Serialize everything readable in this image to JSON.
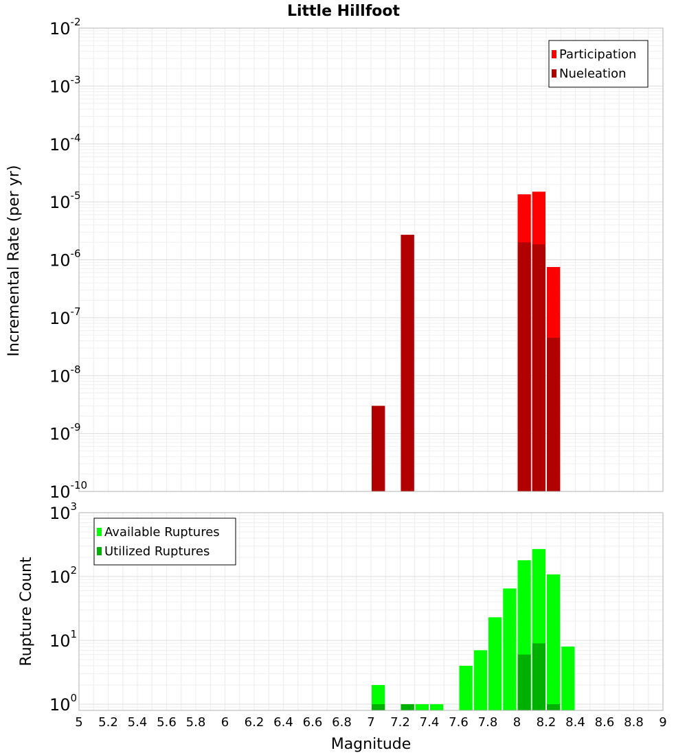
{
  "chart_data": [
    {
      "type": "bar",
      "title": "Little Hillfoot",
      "xlabel": "",
      "ylabel": "Incremental Rate (per yr)",
      "xlim": [
        5,
        9
      ],
      "ylim": [
        1e-10,
        0.01
      ],
      "yscale": "log",
      "y_tick_base": "10",
      "y_tick_exponents": [
        "-10",
        "-9",
        "-8",
        "-7",
        "-6",
        "-5",
        "-4",
        "-3",
        "-2"
      ],
      "grid": true,
      "legend": {
        "placement": "top-right",
        "entries": [
          "Participation",
          "Nueleation"
        ]
      },
      "series": [
        {
          "name": "Participation",
          "color": "#ff0000",
          "points": [
            {
              "x": 7.05,
              "y": 3e-09
            },
            {
              "x": 7.25,
              "y": 2.7e-06
            },
            {
              "x": 8.05,
              "y": 1.35e-05
            },
            {
              "x": 8.15,
              "y": 1.5e-05
            },
            {
              "x": 8.25,
              "y": 7.5e-07
            }
          ]
        },
        {
          "name": "Nueleation",
          "color": "#b00000",
          "points": [
            {
              "x": 7.05,
              "y": 3e-09
            },
            {
              "x": 7.25,
              "y": 2.7e-06
            },
            {
              "x": 8.05,
              "y": 2e-06
            },
            {
              "x": 8.15,
              "y": 1.85e-06
            },
            {
              "x": 8.25,
              "y": 4.5e-08
            }
          ]
        }
      ]
    },
    {
      "type": "bar",
      "title": "",
      "xlabel": "Magnitude",
      "ylabel": "Rupture Count",
      "xlim": [
        5,
        9
      ],
      "ylim": [
        0.8,
        1000
      ],
      "yscale": "log",
      "y_tick_base": "10",
      "y_tick_exponents": [
        "0",
        "1",
        "2",
        "3"
      ],
      "x_ticks": [
        "5",
        "5.2",
        "5.4",
        "5.6",
        "5.8",
        "6",
        "6.2",
        "6.4",
        "6.6",
        "6.8",
        "7",
        "7.2",
        "7.4",
        "7.6",
        "7.8",
        "8",
        "8.2",
        "8.4",
        "8.6",
        "8.8",
        "9"
      ],
      "grid": true,
      "legend": {
        "placement": "top-left",
        "entries": [
          "Available Ruptures",
          "Utilized Ruptures"
        ]
      },
      "series": [
        {
          "name": "Available Ruptures",
          "color": "#00ff00",
          "points": [
            {
              "x": 7.05,
              "y": 2
            },
            {
              "x": 7.25,
              "y": 1
            },
            {
              "x": 7.35,
              "y": 1
            },
            {
              "x": 7.45,
              "y": 1
            },
            {
              "x": 7.65,
              "y": 4
            },
            {
              "x": 7.75,
              "y": 7
            },
            {
              "x": 7.85,
              "y": 23
            },
            {
              "x": 7.95,
              "y": 65
            },
            {
              "x": 8.05,
              "y": 180
            },
            {
              "x": 8.15,
              "y": 270
            },
            {
              "x": 8.25,
              "y": 108
            },
            {
              "x": 8.35,
              "y": 8
            }
          ]
        },
        {
          "name": "Utilized Ruptures",
          "color": "#00b000",
          "points": [
            {
              "x": 7.05,
              "y": 1
            },
            {
              "x": 7.25,
              "y": 1
            },
            {
              "x": 8.05,
              "y": 6
            },
            {
              "x": 8.15,
              "y": 9
            },
            {
              "x": 8.25,
              "y": 1
            }
          ]
        }
      ]
    }
  ]
}
